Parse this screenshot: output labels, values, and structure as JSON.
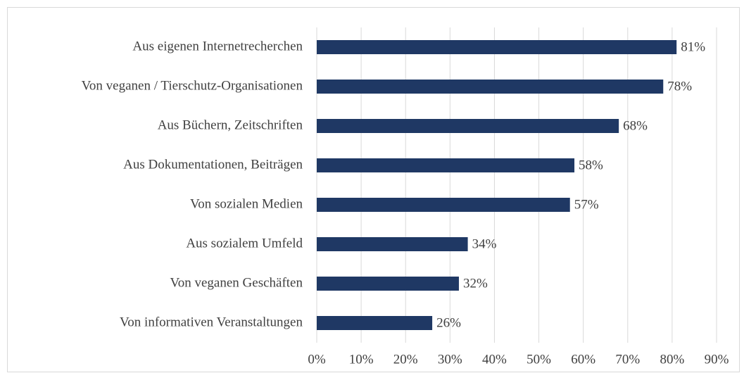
{
  "chart_data": {
    "type": "bar",
    "orientation": "horizontal",
    "categories": [
      "Aus eigenen Internetrecherchen",
      "Von veganen / Tierschutz-Organisationen",
      "Aus Büchern, Zeitschriften",
      "Aus Dokumentationen, Beiträgen",
      "Von sozialen Medien",
      "Aus sozialem Umfeld",
      "Von veganen Geschäften",
      "Von informativen Veranstaltungen"
    ],
    "values": [
      81,
      78,
      68,
      58,
      57,
      34,
      32,
      26
    ],
    "value_labels": [
      "81%",
      "78%",
      "68%",
      "58%",
      "57%",
      "34%",
      "32%",
      "26%"
    ],
    "color": "#1f3864",
    "xlim": [
      0,
      90
    ],
    "xticks": [
      {
        "value": 0,
        "label": "0%"
      },
      {
        "value": 10,
        "label": "10%"
      },
      {
        "value": 20,
        "label": "20%"
      },
      {
        "value": 30,
        "label": "30%"
      },
      {
        "value": 40,
        "label": "40%"
      },
      {
        "value": 50,
        "label": "50%"
      },
      {
        "value": 60,
        "label": "60%"
      },
      {
        "value": 70,
        "label": "70%"
      },
      {
        "value": 80,
        "label": "80%"
      },
      {
        "value": 90,
        "label": "90%"
      }
    ],
    "grid": true
  }
}
